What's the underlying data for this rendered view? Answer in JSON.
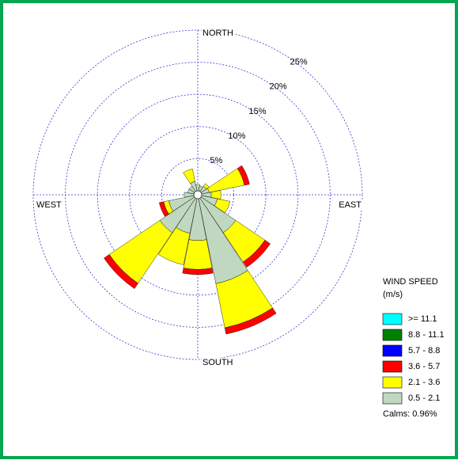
{
  "chart_data": {
    "type": "windrose",
    "x": [
      0,
      22.5,
      45,
      67.5,
      90,
      112.5,
      135,
      157.5,
      180,
      202.5,
      225,
      247.5,
      270,
      292.5,
      315,
      337.5
    ],
    "direction_labels": [
      "NORTH",
      "EAST",
      "SOUTH",
      "WEST"
    ],
    "rlim": [
      0,
      25
    ],
    "rticks": [
      {
        "value": 5,
        "label": "5%"
      },
      {
        "value": 10,
        "label": "10%"
      },
      {
        "value": 15,
        "label": "15%"
      },
      {
        "value": 20,
        "label": "20%"
      },
      {
        "value": 25,
        "label": "25%"
      }
    ],
    "legend_title": "WIND SPEED",
    "legend_units": "(m/s)",
    "calms": "Calms: 0.96%",
    "series": [
      {
        "name": "0.5 - 2.1",
        "color": "#c0d8c0",
        "values": [
          1.0,
          0.8,
          1.0,
          1.2,
          1.5,
          2.5,
          6.5,
          13.5,
          6.5,
          5.5,
          6.5,
          4.0,
          1.5,
          1.0,
          1.0,
          1.5
        ]
      },
      {
        "name": "2.1 - 3.6",
        "color": "#ffff00",
        "values": [
          0,
          0,
          0.5,
          5.6,
          1.5,
          2.0,
          5.5,
          7.0,
          4.5,
          5.0,
          9.5,
          0.8,
          0,
          0,
          0,
          2.0
        ]
      },
      {
        "name": "3.6 - 5.7",
        "color": "#ff0000",
        "values": [
          0,
          0,
          0,
          0.8,
          0,
          0,
          1.0,
          1.0,
          0.8,
          0,
          1.0,
          0.7,
          0,
          0,
          0,
          0
        ]
      },
      {
        "name": "5.7 - 8.8",
        "color": "#0000ff",
        "values": [
          0,
          0,
          0,
          0,
          0,
          0,
          0,
          0,
          0,
          0,
          0,
          0,
          0,
          0,
          0,
          0
        ]
      },
      {
        "name": "8.8 - 11.1",
        "color": "#008000",
        "values": [
          0,
          0,
          0,
          0,
          0,
          0,
          0,
          0,
          0,
          0,
          0,
          0,
          0,
          0,
          0,
          0
        ]
      },
      {
        "name": ">= 11.1",
        "color": "#00ffff",
        "values": [
          0,
          0,
          0,
          0,
          0,
          0,
          0,
          0,
          0,
          0,
          0,
          0,
          0,
          0,
          0,
          0
        ]
      }
    ]
  }
}
